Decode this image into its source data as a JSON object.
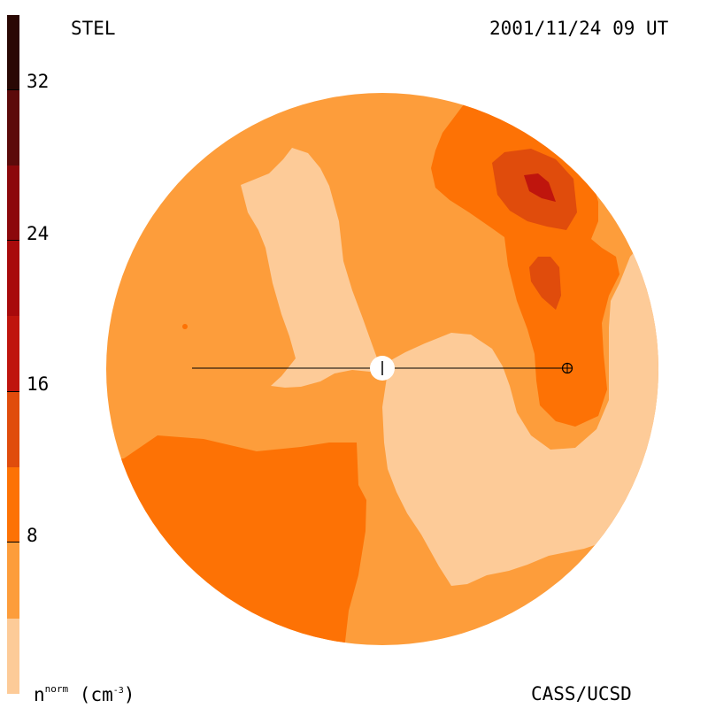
{
  "header": {
    "instrument": "STEL",
    "timestamp": "2001/11/24 09 UT"
  },
  "footer": {
    "credit": "CASS/UCSD"
  },
  "colorbar": {
    "unit_base": "n",
    "unit_sup": "norm",
    "unit_open": " (cm",
    "unit_exp": "-3",
    "unit_close": ")",
    "tick_labels": [
      "32",
      "24",
      "16",
      "8"
    ],
    "colors": [
      "#fdcb98",
      "#fd9d3b",
      "#fd7205",
      "#e04c0c",
      "#bf150d",
      "#8c080b",
      "#5c0a0a",
      "#2a0804"
    ]
  },
  "colors": {
    "level_1": "#fdcb98",
    "level_2": "#fd9d3b",
    "level_3": "#fd7205",
    "level_4": "#e04c0c",
    "level_5": "#bf150d",
    "earth_marker": "#ffffff",
    "line": "#000000"
  }
}
